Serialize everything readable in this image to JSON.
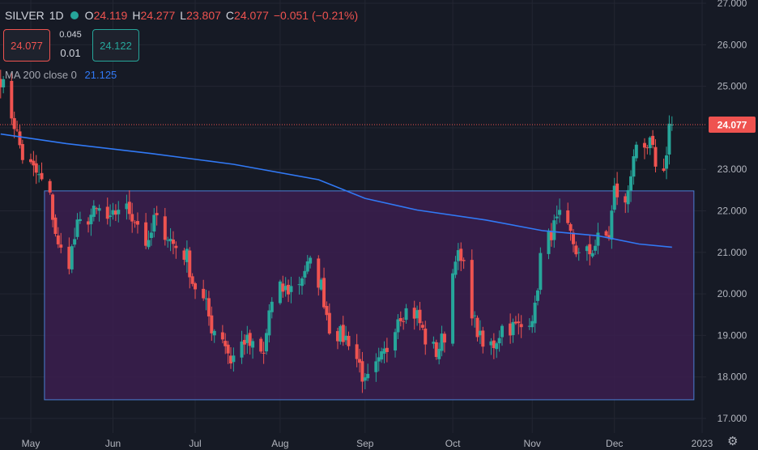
{
  "legend": {
    "symbol": "SILVER",
    "timeframe": "1D",
    "open_label": "O",
    "open": "24.119",
    "high_label": "H",
    "high": "24.277",
    "low_label": "L",
    "low": "23.807",
    "close_label": "C",
    "close": "24.077",
    "change": "−0.051 (−0.21%)"
  },
  "trade": {
    "sell": "24.077",
    "spread_top": "0.045",
    "spread_bottom": "0.01",
    "buy": "24.122"
  },
  "indicator": {
    "name": "MA 200 close 0",
    "value": "21.125"
  },
  "colors": {
    "up": "#26a69a",
    "down": "#ef5350",
    "ma": "#3179f5",
    "box_fill": "#3b1f4f",
    "box_stroke": "#4a7fd4",
    "background": "#161a25"
  },
  "icons": {
    "settings": "gear-icon"
  },
  "chart_data": {
    "type": "candlestick",
    "symbol": "SILVER",
    "timeframe": "1D",
    "y_ticks": [
      "17.000",
      "18.000",
      "19.000",
      "20.000",
      "21.000",
      "22.000",
      "23.000",
      "24.000",
      "25.000",
      "26.000",
      "27.000"
    ],
    "ylim": [
      16.85,
      27.1
    ],
    "x_ticks": [
      {
        "label": "May",
        "date": "2022-05-02"
      },
      {
        "label": "Jun",
        "date": "2022-06-01"
      },
      {
        "label": "Jul",
        "date": "2022-07-01"
      },
      {
        "label": "Aug",
        "date": "2022-08-01"
      },
      {
        "label": "Sep",
        "date": "2022-09-01"
      },
      {
        "label": "Oct",
        "date": "2022-10-03"
      },
      {
        "label": "Nov",
        "date": "2022-11-01"
      },
      {
        "label": "Dec",
        "date": "2022-12-01"
      },
      {
        "label": "2023",
        "date": "2023-01-02"
      }
    ],
    "last_price": "24.077",
    "anchors": [
      [
        "2022-04-21",
        25.2
      ],
      [
        "2022-04-26",
        24.1
      ],
      [
        "2022-04-29",
        23.3
      ],
      [
        "2022-05-04",
        22.9
      ],
      [
        "2022-05-06",
        22.7
      ],
      [
        "2022-05-09",
        22.3
      ],
      [
        "2022-05-12",
        21.1
      ],
      [
        "2022-05-16",
        20.8
      ],
      [
        "2022-05-19",
        21.6
      ],
      [
        "2022-05-24",
        21.9
      ],
      [
        "2022-05-27",
        22.0
      ],
      [
        "2022-05-31",
        21.7
      ],
      [
        "2022-06-03",
        22.1
      ],
      [
        "2022-06-07",
        22.0
      ],
      [
        "2022-06-10",
        21.7
      ],
      [
        "2022-06-14",
        21.1
      ],
      [
        "2022-06-16",
        21.8
      ],
      [
        "2022-06-20",
        21.5
      ],
      [
        "2022-06-23",
        21.2
      ],
      [
        "2022-06-28",
        20.9
      ],
      [
        "2022-06-30",
        20.3
      ],
      [
        "2022-07-05",
        19.7
      ],
      [
        "2022-07-07",
        19.2
      ],
      [
        "2022-07-11",
        19.0
      ],
      [
        "2022-07-14",
        18.4
      ],
      [
        "2022-07-19",
        18.9
      ],
      [
        "2022-07-22",
        18.7
      ],
      [
        "2022-07-26",
        18.5
      ],
      [
        "2022-07-28",
        19.6
      ],
      [
        "2022-08-01",
        20.1
      ],
      [
        "2022-08-04",
        20.1
      ],
      [
        "2022-08-08",
        20.3
      ],
      [
        "2022-08-10",
        20.6
      ],
      [
        "2022-08-12",
        20.7
      ],
      [
        "2022-08-16",
        20.2
      ],
      [
        "2022-08-19",
        19.2
      ],
      [
        "2022-08-23",
        19.0
      ],
      [
        "2022-08-26",
        18.9
      ],
      [
        "2022-08-30",
        18.3
      ],
      [
        "2022-09-01",
        17.8
      ],
      [
        "2022-09-06",
        18.3
      ],
      [
        "2022-09-09",
        18.7
      ],
      [
        "2022-09-13",
        19.5
      ],
      [
        "2022-09-16",
        19.6
      ],
      [
        "2022-09-20",
        19.5
      ],
      [
        "2022-09-23",
        18.9
      ],
      [
        "2022-09-27",
        18.6
      ],
      [
        "2022-09-30",
        19.0
      ],
      [
        "2022-10-04",
        21.0
      ],
      [
        "2022-10-07",
        20.6
      ],
      [
        "2022-10-11",
        19.3
      ],
      [
        "2022-10-14",
        18.7
      ],
      [
        "2022-10-18",
        18.8
      ],
      [
        "2022-10-21",
        19.2
      ],
      [
        "2022-10-25",
        19.2
      ],
      [
        "2022-10-28",
        19.2
      ],
      [
        "2022-11-02",
        19.6
      ],
      [
        "2022-11-04",
        20.9
      ],
      [
        "2022-11-08",
        21.5
      ],
      [
        "2022-11-11",
        21.8
      ],
      [
        "2022-11-15",
        21.4
      ],
      [
        "2022-11-18",
        20.9
      ],
      [
        "2022-11-22",
        21.0
      ],
      [
        "2022-11-25",
        21.3
      ],
      [
        "2022-11-29",
        21.4
      ],
      [
        "2022-12-01",
        22.5
      ],
      [
        "2022-12-05",
        22.1
      ],
      [
        "2022-12-08",
        23.4
      ],
      [
        "2022-12-12",
        23.3
      ],
      [
        "2022-12-14",
        23.6
      ],
      [
        "2022-12-16",
        23.2
      ],
      [
        "2022-12-19",
        22.9
      ],
      [
        "2022-12-21",
        24.1
      ],
      [
        "2022-12-22",
        24.08
      ]
    ],
    "ma200": [
      [
        "2022-04-21",
        23.85
      ],
      [
        "2022-05-15",
        23.62
      ],
      [
        "2022-06-15",
        23.38
      ],
      [
        "2022-07-15",
        23.12
      ],
      [
        "2022-08-15",
        22.75
      ],
      [
        "2022-09-01",
        22.3
      ],
      [
        "2022-09-20",
        22.02
      ],
      [
        "2022-10-15",
        21.78
      ],
      [
        "2022-11-05",
        21.52
      ],
      [
        "2022-11-25",
        21.4
      ],
      [
        "2022-12-10",
        21.2
      ],
      [
        "2022-12-22",
        21.125
      ]
    ],
    "range_box": {
      "x_start": "2022-05-07",
      "x_end": "2022-12-30",
      "y_low": 17.45,
      "y_high": 22.48
    }
  }
}
